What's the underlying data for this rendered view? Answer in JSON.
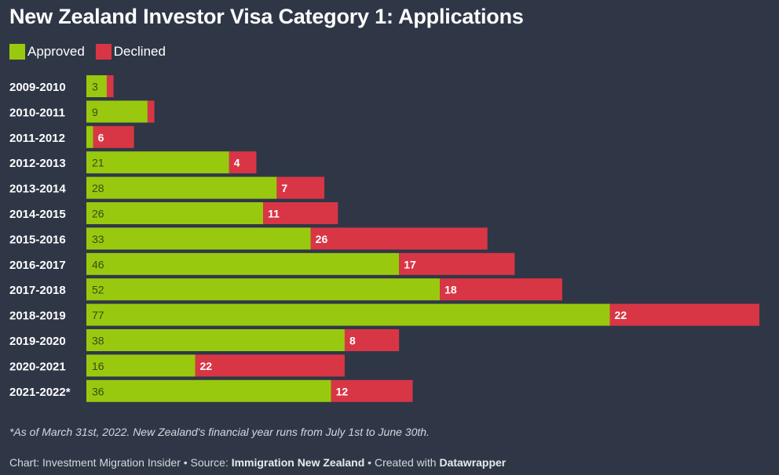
{
  "title": "New Zealand Investor Visa Category 1: Applications",
  "colors": {
    "approved": "#99c90f",
    "declined": "#d93645",
    "background": "#2f3747",
    "approved_label": "#3b4a12",
    "declined_label": "#ffffff"
  },
  "chart_data": {
    "type": "bar",
    "orientation": "horizontal",
    "stacked": true,
    "title": "New Zealand Investor Visa Category 1: Applications",
    "legend": {
      "placement": "top-left",
      "entries": [
        "Approved",
        "Declined"
      ]
    },
    "categories": [
      "2009-2010",
      "2010-2011",
      "2011-2012",
      "2012-2013",
      "2013-2014",
      "2014-2015",
      "2015-2016",
      "2016-2017",
      "2017-2018",
      "2018-2019",
      "2019-2020",
      "2020-2021",
      "2021-2022*"
    ],
    "series": [
      {
        "name": "Approved",
        "values": [
          3,
          9,
          1,
          21,
          28,
          26,
          33,
          46,
          52,
          77,
          38,
          16,
          36
        ],
        "labels": [
          "3",
          "9",
          "",
          "21",
          "28",
          "26",
          "33",
          "46",
          "52",
          "77",
          "38",
          "16",
          "36"
        ]
      },
      {
        "name": "Declined",
        "values": [
          1,
          1,
          6,
          4,
          7,
          11,
          26,
          17,
          18,
          22,
          8,
          22,
          12
        ],
        "labels": [
          "",
          "",
          "6",
          "4",
          "7",
          "11",
          "26",
          "17",
          "18",
          "22",
          "8",
          "22",
          "12"
        ]
      }
    ],
    "xlim": [
      0,
      99
    ],
    "grid": false
  },
  "footnote": "*As of March 31st, 2022. New Zealand's financial year runs from July 1st to June 30th.",
  "credits": {
    "chart_prefix": "Chart: Investment Migration Insider • Source: ",
    "source": "Immigration New Zealand",
    "created_prefix": " • Created with ",
    "tool": "Datawrapper"
  }
}
